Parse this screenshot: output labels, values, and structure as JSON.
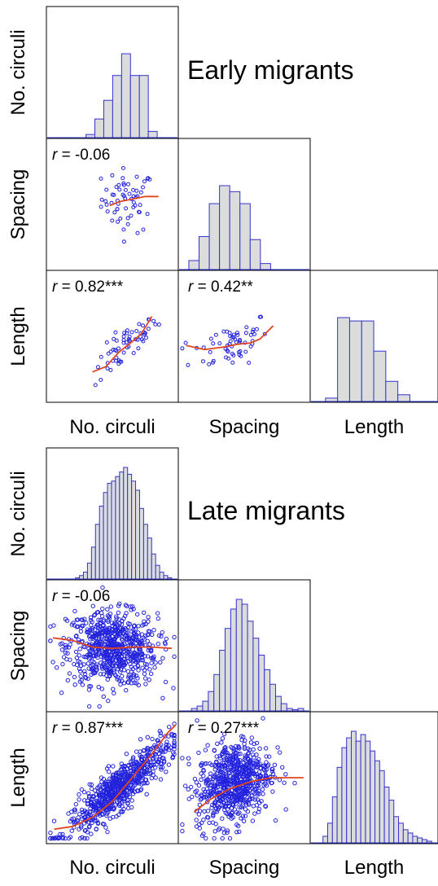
{
  "chart_data": [
    {
      "type": "scatter-matrix",
      "title": "Early migrants",
      "variables": [
        "No. circuli",
        "Spacing",
        "Length"
      ],
      "histograms": {
        "No. circuli": [
          1,
          6,
          12,
          20,
          27,
          20,
          20,
          2
        ],
        "Spacing": [
          3,
          11,
          22,
          28,
          26,
          22,
          10,
          2
        ],
        "Length": [
          1,
          25,
          24,
          24,
          15,
          6,
          2
        ]
      },
      "correlations": [
        {
          "pair": "Spacing vs No. circuli",
          "r_label": "r",
          "value_text": " = -0.06"
        },
        {
          "pair": "Length vs No. circuli",
          "r_label": "r",
          "value_text": " = 0.82***"
        },
        {
          "pair": "Length vs Spacing",
          "r_label": "r",
          "value_text": " = 0.42**"
        }
      ],
      "scatter": {
        "n_points": 60,
        "spacing_vs_circuli": {
          "r": -0.06,
          "smooth": [
            [
              0.48,
              0.49
            ],
            [
              0.55,
              0.52
            ],
            [
              0.65,
              0.54
            ],
            [
              0.75,
              0.56
            ],
            [
              0.85,
              0.56
            ]
          ]
        },
        "length_vs_circuli": {
          "r": 0.82,
          "smooth": [
            [
              0.35,
              0.23
            ],
            [
              0.45,
              0.27
            ],
            [
              0.55,
              0.38
            ],
            [
              0.65,
              0.46
            ],
            [
              0.72,
              0.52
            ],
            [
              0.8,
              0.65
            ]
          ]
        },
        "length_vs_spacing": {
          "r": 0.42,
          "smooth": [
            [
              0.06,
              0.43
            ],
            [
              0.2,
              0.4
            ],
            [
              0.35,
              0.42
            ],
            [
              0.45,
              0.44
            ],
            [
              0.55,
              0.45
            ],
            [
              0.62,
              0.48
            ],
            [
              0.72,
              0.58
            ]
          ]
        }
      }
    },
    {
      "type": "scatter-matrix",
      "title": "Late migrants",
      "variables": [
        "No. circuli",
        "Spacing",
        "Length"
      ],
      "histograms": {
        "No. circuli": [
          1,
          3,
          6,
          14,
          28,
          48,
          64,
          76,
          84,
          86,
          90,
          94,
          98,
          92,
          86,
          78,
          62,
          48,
          36,
          22,
          12,
          6,
          3,
          1
        ],
        "Spacing": [
          2,
          4,
          8,
          16,
          30,
          50,
          68,
          84,
          92,
          88,
          74,
          60,
          46,
          34,
          22,
          12,
          6,
          2,
          1,
          2
        ],
        "Length": [
          4,
          12,
          28,
          46,
          58,
          64,
          68,
          62,
          66,
          62,
          56,
          50,
          44,
          34,
          26,
          16,
          12,
          8,
          6,
          4,
          3,
          2,
          1
        ]
      },
      "correlations": [
        {
          "pair": "Spacing vs No. circuli",
          "r_label": "r",
          "value_text": " = -0.06"
        },
        {
          "pair": "Length vs No. circuli",
          "r_label": "r",
          "value_text": " = 0.87***"
        },
        {
          "pair": "Length vs Spacing",
          "r_label": "r",
          "value_text": " = 0.27***"
        }
      ],
      "scatter": {
        "n_points": 700,
        "spacing_vs_circuli": {
          "r": -0.06,
          "smooth": [
            [
              0.05,
              0.56
            ],
            [
              0.2,
              0.54
            ],
            [
              0.35,
              0.49
            ],
            [
              0.5,
              0.48
            ],
            [
              0.65,
              0.49
            ],
            [
              0.8,
              0.49
            ],
            [
              0.95,
              0.48
            ]
          ]
        },
        "length_vs_circuli": {
          "r": 0.87,
          "smooth": [
            [
              0.06,
              0.11
            ],
            [
              0.2,
              0.13
            ],
            [
              0.35,
              0.2
            ],
            [
              0.5,
              0.32
            ],
            [
              0.65,
              0.5
            ],
            [
              0.8,
              0.68
            ],
            [
              0.92,
              0.84
            ],
            [
              0.98,
              0.9
            ]
          ]
        },
        "length_vs_spacing": {
          "r": 0.27,
          "smooth": [
            [
              0.12,
              0.24
            ],
            [
              0.25,
              0.34
            ],
            [
              0.4,
              0.42
            ],
            [
              0.55,
              0.47
            ],
            [
              0.7,
              0.5
            ],
            [
              0.85,
              0.5
            ],
            [
              0.95,
              0.5
            ]
          ]
        }
      }
    }
  ],
  "colors": {
    "frame": "#000000",
    "hist_fill": "#dcdcdc",
    "hist_edge": "#3333cc",
    "points": "#2222dd",
    "smooth": "#e0451f",
    "baseline": "#3333cc"
  }
}
